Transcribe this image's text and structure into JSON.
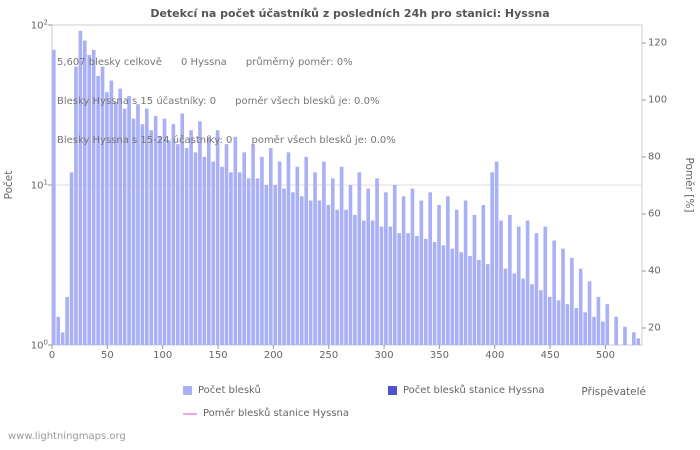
{
  "title": "Detekcí na počet účastníků z posledních 24h pro stanici: Hyssna",
  "annotations": {
    "line1": "5,607 blesky celkově      0 Hyssna      průměrný poměr: 0%",
    "line2": "Blesky Hyssna s 15 účastníky: 0      poměr všech blesků je: 0.0%",
    "line3": "Blesky Hyssna s 15-24 účastníky: 0      poměr všech blesků je: 0.0%"
  },
  "footer": {
    "url_text": "www.lightningmaps.org"
  },
  "colors": {
    "bars": "#a9b0f5",
    "station_bars": "#5153cc",
    "ratio_line": "#f2a6de",
    "grid": "#dddddd",
    "frame": "#cccccc",
    "tick": "#999999"
  },
  "chart_data": {
    "type": "bar",
    "title": "Detekcí na počet účastníků z posledních 24h pro stanici: Hyssna",
    "xlabel": "Přispěvatelé",
    "ylabel_left": "Počet",
    "ylabel_right": "Poměr [%]",
    "x_axis": {
      "ticks": [
        0,
        50,
        100,
        150,
        200,
        250,
        300,
        350,
        400,
        450,
        500
      ],
      "max": 533
    },
    "y_axis_left": {
      "scale": "log10",
      "tick_exponents": [
        0,
        1,
        2
      ],
      "range_exponents": [
        0,
        2
      ]
    },
    "y_axis_right": {
      "ticks": [
        20,
        40,
        60,
        80,
        100,
        120
      ],
      "unit": "%"
    },
    "series": [
      {
        "name": "Počet blesků",
        "color": "#a9b0f5",
        "x_start": 0,
        "x_step": 4,
        "values": [
          70,
          1.5,
          1.2,
          2,
          12,
          55,
          92,
          80,
          65,
          70,
          48,
          55,
          38,
          45,
          33,
          40,
          30,
          36,
          26,
          32,
          24,
          30,
          22,
          27,
          20,
          26,
          19,
          24,
          18,
          28,
          17,
          22,
          16,
          25,
          15,
          20,
          14,
          22,
          13,
          18,
          12,
          20,
          12,
          16,
          11,
          18,
          11,
          15,
          10,
          17,
          10,
          14,
          9.5,
          16,
          9,
          13,
          8.5,
          15,
          8,
          12,
          8,
          14,
          7.5,
          11,
          7,
          13,
          7,
          10,
          6.5,
          12,
          6,
          9.5,
          6,
          11,
          5.5,
          9,
          5.5,
          10,
          5,
          8.5,
          5,
          9.5,
          4.8,
          8,
          4.6,
          9,
          4.4,
          7.5,
          4.2,
          8.5,
          4,
          7,
          3.8,
          8,
          3.6,
          6.5,
          3.4,
          7.5,
          3.2,
          12,
          14,
          6,
          3,
          6.5,
          2.8,
          5.5,
          2.6,
          6,
          2.4,
          5,
          2.2,
          5.5,
          2,
          4.5,
          1.9,
          4,
          1.8,
          3.5,
          1.7,
          3,
          1.6,
          2.5,
          1.5,
          2,
          1.4,
          1.8,
          0,
          1.5,
          0,
          1.3,
          0,
          1.2,
          1.1
        ]
      },
      {
        "name": "Počet blesků stanice Hyssna",
        "color": "#5153cc",
        "constant_value": 0
      },
      {
        "name": "Poměr blesků stanice Hyssna",
        "color": "#f2a6de",
        "constant_value": 0,
        "axis": "right"
      }
    ]
  }
}
